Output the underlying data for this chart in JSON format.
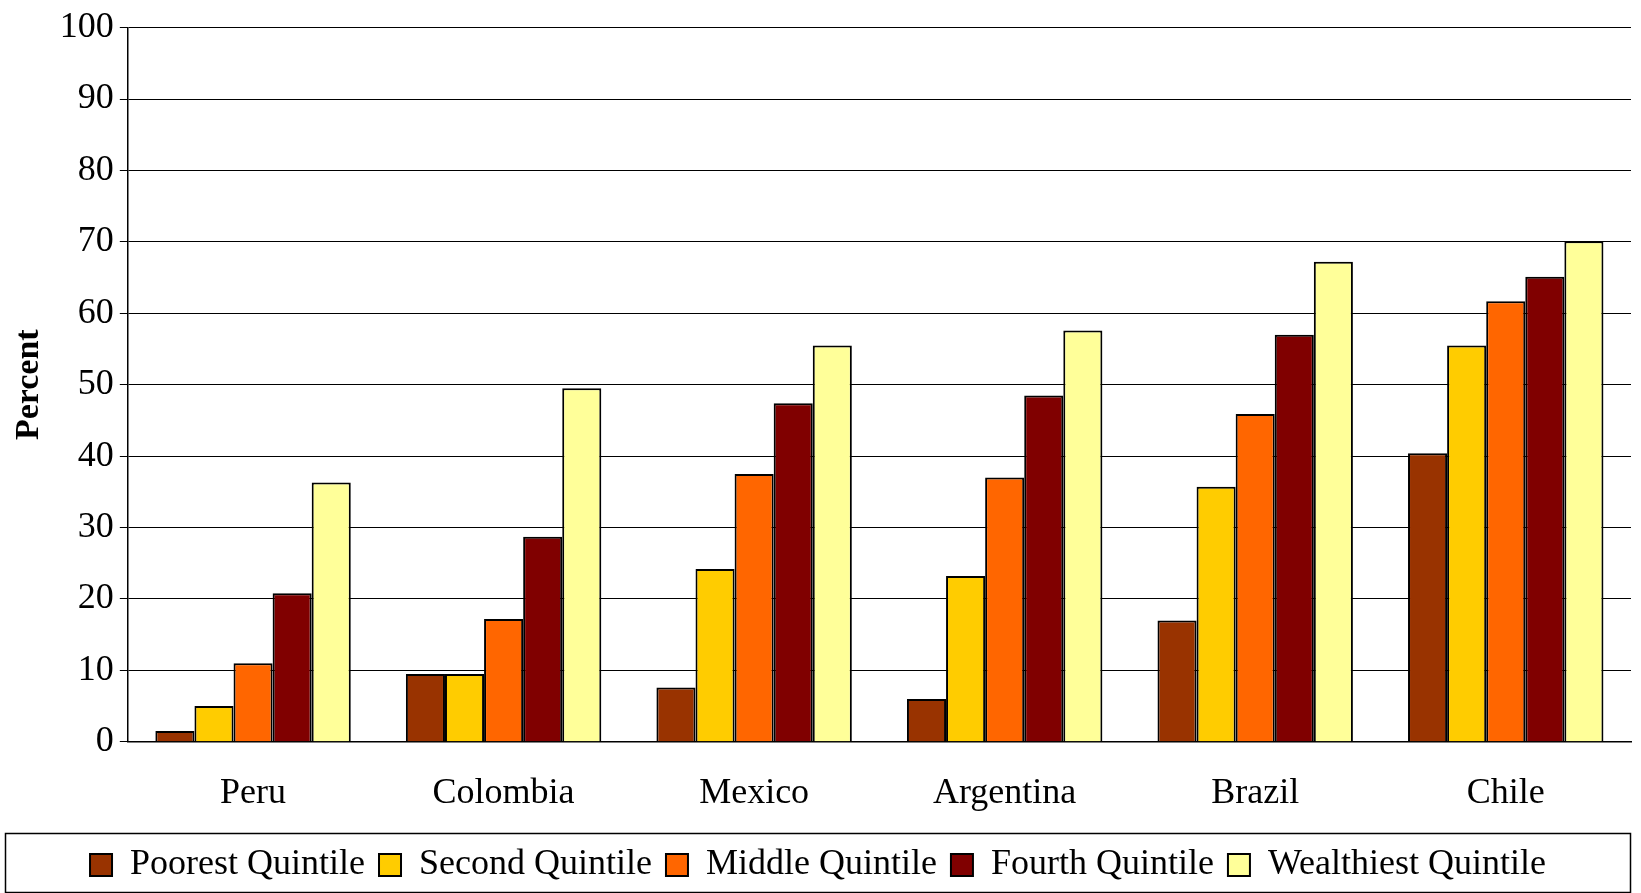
{
  "chart_data": {
    "type": "bar",
    "ylabel": "Percent",
    "categories": [
      "Peru",
      "Colombia",
      "Mexico",
      "Argentina",
      "Brazil",
      "Chile"
    ],
    "series": [
      {
        "name": "Poorest Quintile",
        "color": "#993300",
        "values": [
          1.5,
          9.5,
          7.6,
          6,
          17,
          40.4
        ]
      },
      {
        "name": "Second Quintile",
        "color": "#ffcc00",
        "values": [
          5,
          9.5,
          24.2,
          23.2,
          35.7,
          55.5
        ]
      },
      {
        "name": "Middle Quintile",
        "color": "#ff6600",
        "values": [
          11,
          17.2,
          37.5,
          37,
          45.9,
          61.7
        ]
      },
      {
        "name": "Fourth Quintile",
        "color": "#800000",
        "values": [
          20.8,
          28.7,
          47.4,
          48.5,
          57,
          65.1
        ]
      },
      {
        "name": "Wealthiest Quintile",
        "color": "#ffff99",
        "values": [
          36.3,
          49.5,
          55.5,
          57.6,
          67.2,
          70.1
        ]
      }
    ],
    "ylim": [
      0,
      100
    ],
    "yticks": [
      0,
      10,
      20,
      30,
      40,
      50,
      60,
      70,
      80,
      90,
      100
    ],
    "grid": "y",
    "legend": "bottom"
  }
}
